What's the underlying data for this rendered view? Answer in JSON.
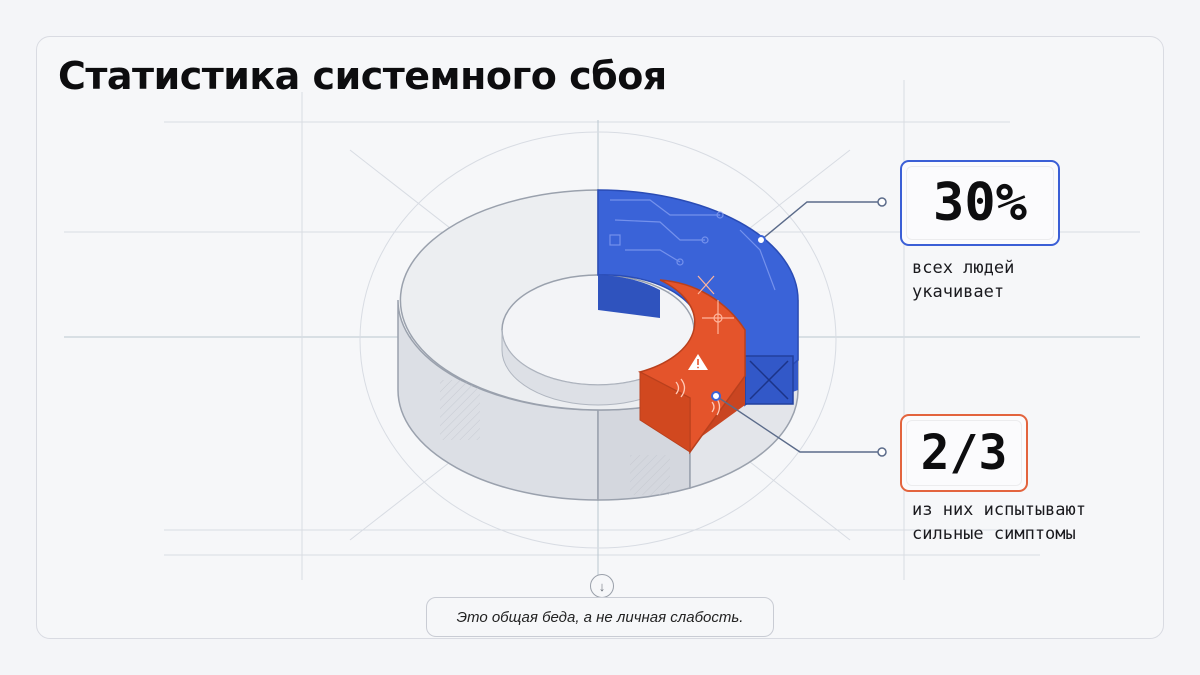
{
  "title": "Статистика системного сбоя",
  "chart_data": {
    "type": "pie",
    "style": "3d-donut",
    "segments": [
      {
        "label": "30%",
        "value": 30,
        "color": "#3a63d8",
        "description": "всех людей\nукачивает"
      },
      {
        "label": "2/3",
        "value": 20,
        "fraction_of_parent": 0.6667,
        "color": "#e4542b",
        "description": "из них испытывают\nсильные симптомы"
      },
      {
        "label": "",
        "value": 70,
        "color": "#e9eaee"
      }
    ]
  },
  "stats": {
    "first": {
      "value": "30%",
      "description": "всех людей\nукачивает"
    },
    "second": {
      "value": "2/3",
      "description": "из них испытывают\nсильные симптомы"
    }
  },
  "caption": "Это общая беда, а не личная слабость.",
  "icons": {
    "down": "arrow-down-icon",
    "warning": "warning-icon",
    "signal": "signal-waves-icon"
  },
  "colors": {
    "blue": "#3a63d8",
    "orange": "#e4542b",
    "grey": "#e9eaee",
    "line": "#5b6b8a"
  }
}
